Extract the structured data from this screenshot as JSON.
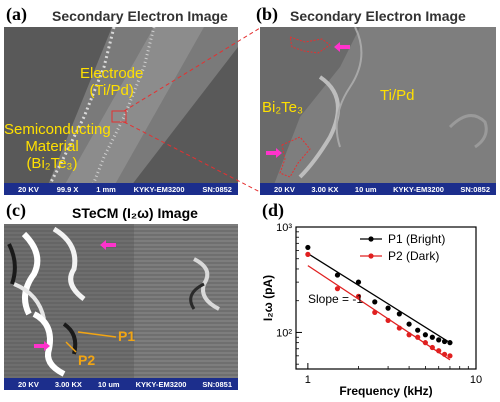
{
  "panels": {
    "a": {
      "label": "(a)",
      "title": "Secondary Electron Image",
      "electrode_label": [
        "Electrode",
        "(Ti/Pd)"
      ],
      "material_label": [
        "Semiconducting",
        "Material",
        "(Bi₂Te₃)"
      ],
      "scalebar": {
        "kv": "20 KV",
        "mag": "99.9 X",
        "scale": "1 mm",
        "device": "KYKY-EM3200",
        "sn": "SN:0852"
      }
    },
    "b": {
      "label": "(b)",
      "title": "Secondary Electron Image",
      "left_label": "Bi₂Te₃",
      "right_label": "Ti/Pd",
      "scalebar": {
        "kv": "20 KV",
        "mag": "3.00 KX",
        "scale": "10 um",
        "device": "KYKY-EM3200",
        "sn": "SN:0852"
      }
    },
    "c": {
      "label": "(c)",
      "title": "STeCM (I₂ω) Image",
      "p1_label": "P1",
      "p2_label": "P2",
      "scalebar": {
        "kv": "20 KV",
        "mag": "3.00 KX",
        "scale": "10 um",
        "device": "KYKY-EM3200",
        "sn": "SN:0851"
      }
    },
    "d": {
      "label": "(d)"
    }
  },
  "colors": {
    "sem_bar": "#1c2e8c",
    "yellow_label": "#ffe000",
    "orange_label": "#f2a514",
    "magenta_arrow": "#ff33cc",
    "red_dashed": "#e53030",
    "series_bright": "#000000",
    "series_dark": "#e02020"
  },
  "chart_data": {
    "type": "scatter",
    "xscale": "log",
    "yscale": "log",
    "xlabel": "Frequency (kHz)",
    "ylabel": "I₂ω (pA)",
    "xlim": [
      0.85,
      10
    ],
    "ylim": [
      45,
      1000
    ],
    "xticks": [
      1,
      10
    ],
    "yticks": [
      100,
      1000
    ],
    "xtick_labels": [
      "1",
      "10"
    ],
    "ytick_labels": [
      "10²",
      "10³"
    ],
    "legend_position": "top-right",
    "annotation": "Slope = -1",
    "series": [
      {
        "name": "P1 (Bright)",
        "color": "#000000",
        "x": [
          1.0,
          1.5,
          2.0,
          2.5,
          3.0,
          3.5,
          4.0,
          4.5,
          5.0,
          5.5,
          6.0,
          6.5,
          7.0
        ],
        "y": [
          640,
          350,
          300,
          195,
          170,
          150,
          120,
          105,
          95,
          90,
          85,
          82,
          80
        ],
        "fit": {
          "x": [
            1.0,
            7.0
          ],
          "y": [
            560,
            80
          ]
        }
      },
      {
        "name": "P2 (Dark)",
        "color": "#e02020",
        "x": [
          1.0,
          1.5,
          2.0,
          2.5,
          3.0,
          3.5,
          4.0,
          4.5,
          5.0,
          5.5,
          6.0,
          6.5,
          7.0
        ],
        "y": [
          550,
          260,
          220,
          155,
          130,
          110,
          95,
          90,
          80,
          72,
          67,
          62,
          60
        ],
        "fit": {
          "x": [
            1.0,
            7.0
          ],
          "y": [
            430,
            55
          ]
        }
      }
    ]
  }
}
